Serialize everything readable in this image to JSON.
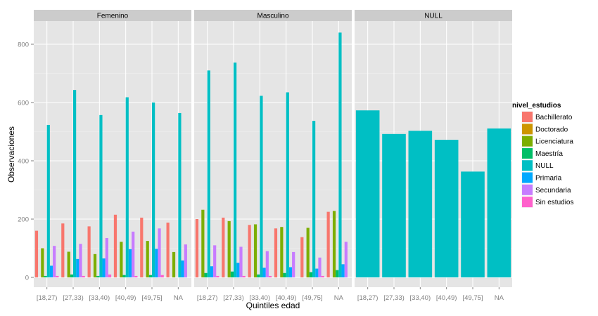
{
  "chart_data": {
    "type": "bar",
    "xlabel": "Quintiles edad",
    "ylabel": "Observaciones",
    "ylim": [
      0,
      840
    ],
    "yticks": [
      0,
      200,
      400,
      600,
      800
    ],
    "grid": true,
    "categories": [
      "[18,27)",
      "[27,33)",
      "[33,40)",
      "[40,49)",
      "[49,75]",
      "NA"
    ],
    "legend": {
      "title": "nivel_estudios",
      "placement": "right",
      "items": [
        {
          "name": "Bachillerato",
          "color": "#F8766D"
        },
        {
          "name": "Doctorado",
          "color": "#CD9600"
        },
        {
          "name": "Licenciatura",
          "color": "#7CAE00"
        },
        {
          "name": "Maestría",
          "color": "#00BE67"
        },
        {
          "name": "NULL",
          "color": "#00BFC4"
        },
        {
          "name": "Primaria",
          "color": "#00A9FF"
        },
        {
          "name": "Secundaria",
          "color": "#C77CFF"
        },
        {
          "name": "Sin estudios",
          "color": "#FF61CC"
        }
      ]
    },
    "panels": [
      {
        "title": "Femenino",
        "series": [
          {
            "name": "Bachillerato",
            "values": [
              160,
              185,
              175,
              215,
              205,
              188
            ]
          },
          {
            "name": "Doctorado",
            "values": [
              0,
              0,
              0,
              0,
              0,
              0
            ]
          },
          {
            "name": "Licenciatura",
            "values": [
              100,
              88,
              80,
              122,
              125,
              87
            ]
          },
          {
            "name": "Maestría",
            "values": [
              5,
              10,
              5,
              8,
              8,
              0
            ]
          },
          {
            "name": "NULL",
            "values": [
              523,
              643,
              557,
              618,
              600,
              564
            ]
          },
          {
            "name": "Primaria",
            "values": [
              40,
              63,
              65,
              97,
              98,
              58
            ]
          },
          {
            "name": "Secundaria",
            "values": [
              108,
              115,
              135,
              157,
              168,
              113
            ]
          },
          {
            "name": "Sin estudios",
            "values": [
              5,
              5,
              10,
              5,
              8,
              0
            ]
          }
        ]
      },
      {
        "title": "Masculino",
        "series": [
          {
            "name": "Bachillerato",
            "values": [
              200,
              205,
              180,
              168,
              138,
              225
            ]
          },
          {
            "name": "Doctorado",
            "values": [
              0,
              0,
              0,
              0,
              0,
              0
            ]
          },
          {
            "name": "Licenciatura",
            "values": [
              232,
              193,
              182,
              173,
              170,
              228
            ]
          },
          {
            "name": "Maestría",
            "values": [
              15,
              20,
              10,
              15,
              18,
              25
            ]
          },
          {
            "name": "NULL",
            "values": [
              710,
              737,
              623,
              635,
              537,
              840
            ]
          },
          {
            "name": "Primaria",
            "values": [
              38,
              50,
              33,
              35,
              30,
              45
            ]
          },
          {
            "name": "Secundaria",
            "values": [
              110,
              105,
              90,
              87,
              68,
              122
            ]
          },
          {
            "name": "Sin estudios",
            "values": [
              5,
              5,
              5,
              0,
              5,
              0
            ]
          }
        ]
      },
      {
        "title": "NULL",
        "series": [
          {
            "name": "NULL",
            "values": [
              573,
              492,
              503,
              472,
              363,
              511
            ]
          }
        ]
      }
    ]
  }
}
